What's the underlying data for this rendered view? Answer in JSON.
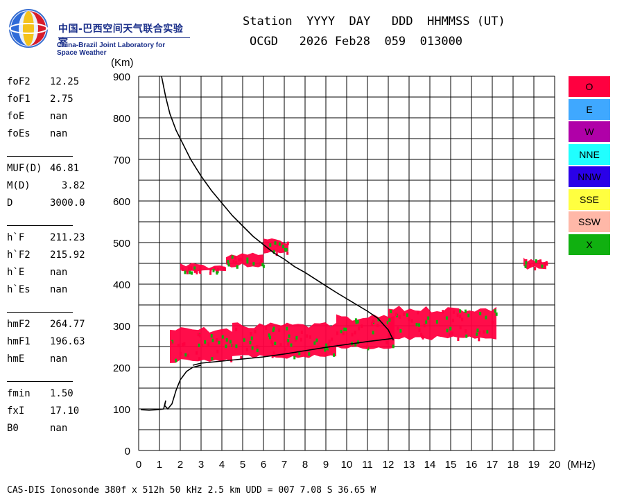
{
  "logo": {
    "name_cn": "中国-巴西空间天气联合实验室",
    "name_en": "China-Brazil Joint Laboratory for Space Weather"
  },
  "header": {
    "line1": "Station  YYYY  DAY   DDD  HHMMSS (UT)",
    "line2": "OCGD   2026 Feb28  059  013000"
  },
  "params": [
    {
      "key": "foF2",
      "value": "12.25"
    },
    {
      "key": "foF1",
      "value": "2.75"
    },
    {
      "key": "foE",
      "value": "nan"
    },
    {
      "key": "foEs",
      "value": "nan"
    },
    {
      "key": "MUF(D)",
      "value": "46.81"
    },
    {
      "key": "M(D)",
      "value": "  3.82"
    },
    {
      "key": "D",
      "value": "3000.0"
    },
    {
      "key": "h`F",
      "value": "211.23"
    },
    {
      "key": "h`F2",
      "value": "215.92"
    },
    {
      "key": "h`E",
      "value": "nan"
    },
    {
      "key": "h`Es",
      "value": "nan"
    },
    {
      "key": "hmF2",
      "value": "264.77"
    },
    {
      "key": "hmF1",
      "value": "196.63"
    },
    {
      "key": "hmE",
      "value": "nan"
    },
    {
      "key": "fmin",
      "value": "1.50"
    },
    {
      "key": "fxI",
      "value": "17.10"
    },
    {
      "key": "B0",
      "value": "nan"
    }
  ],
  "legend": [
    {
      "label": "O",
      "color": "#ff0040"
    },
    {
      "label": "E",
      "color": "#3fa8ff"
    },
    {
      "label": "W",
      "color": "#b000a8"
    },
    {
      "label": "NNE",
      "color": "#20ffff"
    },
    {
      "label": "NNW",
      "color": "#2a00e8"
    },
    {
      "label": "SSE",
      "color": "#ffff40"
    },
    {
      "label": "SSW",
      "color": "#ffb8a8"
    },
    {
      "label": "X",
      "color": "#10b010"
    }
  ],
  "footer": "CAS-DIS Ionosonde 380f x 512h 50 kHz 2.5 km UDD = 007 7.08 S 36.65 W",
  "chart_data": {
    "type": "scatter",
    "ylabel": "(Km)",
    "xlabel": "(MHz)",
    "xlim": [
      0,
      20
    ],
    "ylim": [
      0,
      900
    ],
    "xticks": [
      "0",
      "1",
      "2",
      "3",
      "4",
      "5",
      "6",
      "7",
      "8",
      "9",
      "10",
      "11",
      "12",
      "13",
      "14",
      "15",
      "16",
      "17",
      "18",
      "19",
      "20"
    ],
    "yticks": [
      "0",
      "100",
      "200",
      "300",
      "400",
      "500",
      "600",
      "700",
      "800",
      "900"
    ],
    "grid": true,
    "profile_line": {
      "name": "",
      "x": [
        1.1,
        1.3,
        1.5,
        1.8,
        2.0,
        2.5,
        3.0,
        3.5,
        4.0,
        4.5,
        5.0,
        5.5,
        6.0,
        6.5,
        7.0,
        7.5,
        8.0,
        8.5,
        9.0,
        9.5,
        10.0,
        10.5,
        11.0,
        11.5,
        12.0,
        12.25
      ],
      "y": [
        900,
        850,
        810,
        770,
        750,
        700,
        660,
        625,
        595,
        565,
        540,
        515,
        495,
        475,
        460,
        442,
        428,
        412,
        396,
        380,
        365,
        350,
        335,
        318,
        290,
        265
      ]
    },
    "low_profile_line": {
      "name": "",
      "x": [
        0.1,
        0.5,
        0.9,
        1.2,
        1.3,
        1.25,
        1.4,
        1.6,
        1.8,
        2.0,
        2.3,
        2.6,
        3.0
      ],
      "y": [
        98,
        97,
        98,
        100,
        120,
        108,
        100,
        112,
        145,
        170,
        190,
        200,
        205
      ]
    },
    "virtual_height_trace": {
      "name": "",
      "x": [
        2.6,
        3.0,
        4.0,
        5.0,
        6.0,
        7.0,
        8.0,
        9.0,
        10.0,
        11.0,
        12.0,
        12.25
      ],
      "y": [
        205,
        210,
        215,
        220,
        225,
        232,
        240,
        248,
        255,
        262,
        268,
        270
      ]
    },
    "o_mode_bands": [
      {
        "x_start": 1.5,
        "x_end": 4.5,
        "y_bottom": 215,
        "y_top": 290
      },
      {
        "x_start": 4.5,
        "x_end": 9.5,
        "y_bottom": 225,
        "y_top": 300
      },
      {
        "x_start": 9.5,
        "x_end": 12.3,
        "y_bottom": 245,
        "y_top": 320
      },
      {
        "x_start": 12.0,
        "x_end": 17.2,
        "y_bottom": 270,
        "y_top": 340
      },
      {
        "x_start": 2.0,
        "x_end": 4.2,
        "y_bottom": 430,
        "y_top": 445
      },
      {
        "x_start": 4.2,
        "x_end": 6.0,
        "y_bottom": 445,
        "y_top": 470
      },
      {
        "x_start": 6.0,
        "x_end": 7.2,
        "y_bottom": 475,
        "y_top": 505
      },
      {
        "x_start": 18.5,
        "x_end": 19.6,
        "y_bottom": 440,
        "y_top": 460
      }
    ]
  }
}
